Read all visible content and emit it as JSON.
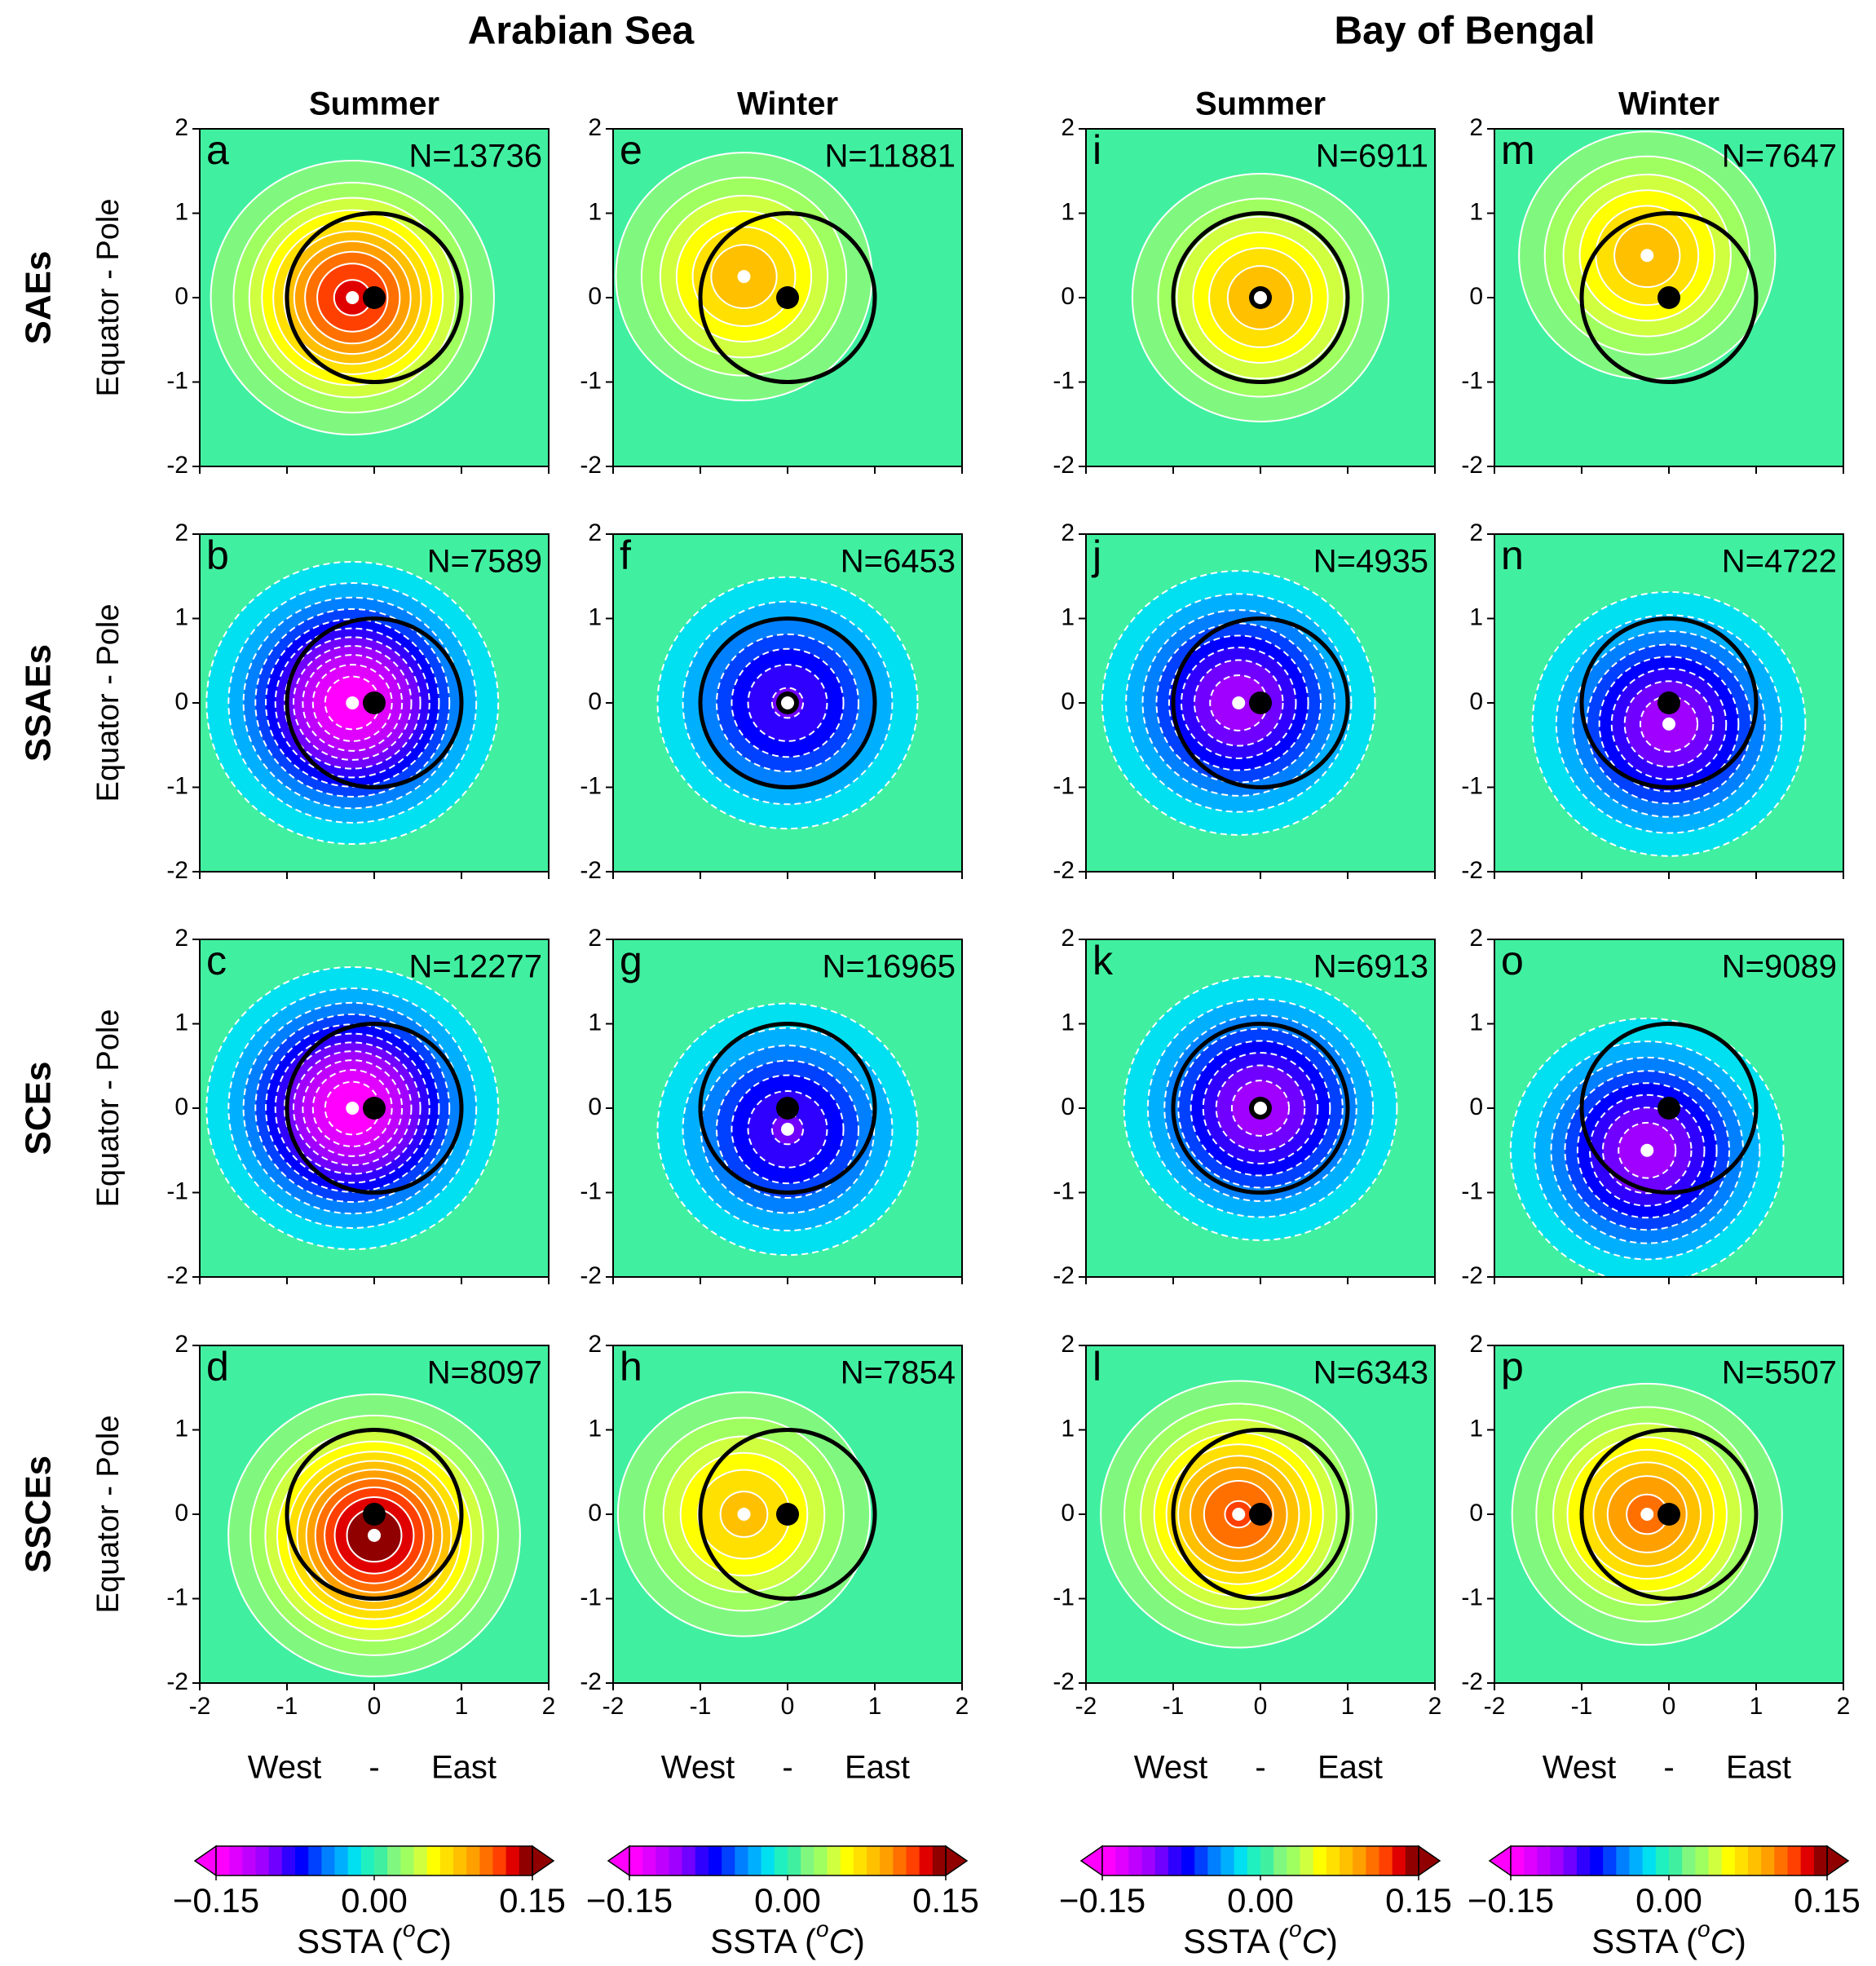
{
  "figure": {
    "regions": [
      "Arabian Sea",
      "Bay of Bengal"
    ],
    "seasons": [
      "Summer",
      "Winter",
      "Summer",
      "Winter"
    ],
    "rows": [
      "SAEs",
      "SSAEs",
      "SCEs",
      "SSCEs"
    ],
    "ylabel": "Equator - Pole",
    "xlabel_parts": [
      "West",
      "-",
      "East"
    ],
    "colorbar": {
      "lim": [
        -0.15,
        0.15
      ],
      "ticks": [
        {
          "value": -0.15,
          "label": "−0.15"
        },
        {
          "value": 0,
          "label": "0.00"
        },
        {
          "value": 0.15,
          "label": "0.15"
        }
      ],
      "label_parts": [
        "SSTA (",
        "o",
        "C",
        ")"
      ],
      "colors": [
        "#ff00ff",
        "#e000ff",
        "#c000ff",
        "#a000ff",
        "#7000ff",
        "#3000ff",
        "#0000ff",
        "#0040ff",
        "#0080ff",
        "#00b0ff",
        "#00e0f0",
        "#20f0c0",
        "#40f0a0",
        "#80f880",
        "#a0ff60",
        "#d0ff40",
        "#ffff00",
        "#ffe000",
        "#ffc000",
        "#ffa000",
        "#ff7000",
        "#ff4000",
        "#e00000",
        "#900000"
      ]
    }
  },
  "chart_data": [
    {
      "type": "contour",
      "title": "a",
      "annotation": "N=13736",
      "peak": 0.13,
      "peak_location": [
        -0.25,
        0
      ],
      "eddy_center": [
        0,
        0
      ],
      "eddy_radius": 1,
      "xlim": [
        -2,
        2
      ],
      "ylim": [
        -2,
        2
      ],
      "xticks": [
        -2,
        -1,
        0,
        1,
        2
      ],
      "yticks": [
        -2,
        -1,
        0,
        1,
        2
      ]
    },
    {
      "type": "contour",
      "title": "b",
      "annotation": "N=7589",
      "peak": -0.15,
      "peak_location": [
        -0.25,
        0
      ],
      "eddy_center": [
        0,
        0
      ],
      "eddy_radius": 1,
      "xlim": [
        -2,
        2
      ],
      "ylim": [
        -2,
        2
      ],
      "xticks": [
        -2,
        -1,
        0,
        1,
        2
      ],
      "yticks": [
        -2,
        -1,
        0,
        1,
        2
      ]
    },
    {
      "type": "contour",
      "title": "c",
      "annotation": "N=12277",
      "peak": -0.15,
      "peak_location": [
        -0.25,
        0
      ],
      "eddy_center": [
        0,
        0
      ],
      "eddy_radius": 1,
      "xlim": [
        -2,
        2
      ],
      "ylim": [
        -2,
        2
      ],
      "xticks": [
        -2,
        -1,
        0,
        1,
        2
      ],
      "yticks": [
        -2,
        -1,
        0,
        1,
        2
      ]
    },
    {
      "type": "contour",
      "title": "d",
      "annotation": "N=8097",
      "peak": 0.15,
      "peak_location": [
        0,
        -0.25
      ],
      "eddy_center": [
        0,
        0
      ],
      "eddy_radius": 1,
      "xlim": [
        -2,
        2
      ],
      "ylim": [
        -2,
        2
      ],
      "xticks": [
        -2,
        -1,
        0,
        1,
        2
      ],
      "yticks": [
        -2,
        -1,
        0,
        1,
        2
      ]
    },
    {
      "type": "contour",
      "title": "e",
      "annotation": "N=11881",
      "peak": 0.085,
      "peak_location": [
        -0.5,
        0.25
      ],
      "eddy_center": [
        0,
        0
      ],
      "eddy_radius": 1,
      "xlim": [
        -2,
        2
      ],
      "ylim": [
        -2,
        2
      ],
      "xticks": [
        -2,
        -1,
        0,
        1,
        2
      ],
      "yticks": [
        -2,
        -1,
        0,
        1,
        2
      ]
    },
    {
      "type": "contour",
      "title": "f",
      "annotation": "N=6453",
      "peak": -0.09,
      "peak_location": [
        0,
        0
      ],
      "eddy_center": [
        0,
        0
      ],
      "eddy_radius": 1,
      "xlim": [
        -2,
        2
      ],
      "ylim": [
        -2,
        2
      ],
      "xticks": [
        -2,
        -1,
        0,
        1,
        2
      ],
      "yticks": [
        -2,
        -1,
        0,
        1,
        2
      ]
    },
    {
      "type": "contour",
      "title": "g",
      "annotation": "N=16965",
      "peak": -0.09,
      "peak_location": [
        0,
        -0.25
      ],
      "eddy_center": [
        0,
        0
      ],
      "eddy_radius": 1,
      "xlim": [
        -2,
        2
      ],
      "ylim": [
        -2,
        2
      ],
      "xticks": [
        -2,
        -1,
        0,
        1,
        2
      ],
      "yticks": [
        -2,
        -1,
        0,
        1,
        2
      ]
    },
    {
      "type": "contour",
      "title": "h",
      "annotation": "N=7854",
      "peak": 0.08,
      "peak_location": [
        -0.5,
        0
      ],
      "eddy_center": [
        0,
        0
      ],
      "eddy_radius": 1,
      "xlim": [
        -2,
        2
      ],
      "ylim": [
        -2,
        2
      ],
      "xticks": [
        -2,
        -1,
        0,
        1,
        2
      ],
      "yticks": [
        -2,
        -1,
        0,
        1,
        2
      ]
    },
    {
      "type": "contour",
      "title": "i",
      "annotation": "N=6911",
      "peak": 0.085,
      "peak_location": [
        0,
        0
      ],
      "eddy_center": [
        0,
        0
      ],
      "eddy_radius": 1,
      "xlim": [
        -2,
        2
      ],
      "ylim": [
        -2,
        2
      ],
      "xticks": [
        -2,
        -1,
        0,
        1,
        2
      ],
      "yticks": [
        -2,
        -1,
        0,
        1,
        2
      ]
    },
    {
      "type": "contour",
      "title": "j",
      "annotation": "N=4935",
      "peak": -0.11,
      "peak_location": [
        -0.25,
        0
      ],
      "eddy_center": [
        0,
        0
      ],
      "eddy_radius": 1,
      "xlim": [
        -2,
        2
      ],
      "ylim": [
        -2,
        2
      ],
      "xticks": [
        -2,
        -1,
        0,
        1,
        2
      ],
      "yticks": [
        -2,
        -1,
        0,
        1,
        2
      ]
    },
    {
      "type": "contour",
      "title": "k",
      "annotation": "N=6913",
      "peak": -0.11,
      "peak_location": [
        0,
        0
      ],
      "eddy_center": [
        0,
        0
      ],
      "eddy_radius": 1,
      "xlim": [
        -2,
        2
      ],
      "ylim": [
        -2,
        2
      ],
      "xticks": [
        -2,
        -1,
        0,
        1,
        2
      ],
      "yticks": [
        -2,
        -1,
        0,
        1,
        2
      ]
    },
    {
      "type": "contour",
      "title": "l",
      "annotation": "N=6343",
      "peak": 0.115,
      "peak_location": [
        -0.25,
        0
      ],
      "eddy_center": [
        0,
        0
      ],
      "eddy_radius": 1,
      "xlim": [
        -2,
        2
      ],
      "ylim": [
        -2,
        2
      ],
      "xticks": [
        -2,
        -1,
        0,
        1,
        2
      ],
      "yticks": [
        -2,
        -1,
        0,
        1,
        2
      ]
    },
    {
      "type": "contour",
      "title": "m",
      "annotation": "N=7647",
      "peak": 0.085,
      "peak_location": [
        -0.25,
        0.5
      ],
      "eddy_center": [
        0,
        0
      ],
      "eddy_radius": 1,
      "xlim": [
        -2,
        2
      ],
      "ylim": [
        -2,
        2
      ],
      "xticks": [
        -2,
        -1,
        0,
        1,
        2
      ],
      "yticks": [
        -2,
        -1,
        0,
        1,
        2
      ]
    },
    {
      "type": "contour",
      "title": "n",
      "annotation": "N=4722",
      "peak": -0.11,
      "peak_location": [
        0,
        -0.25
      ],
      "eddy_center": [
        0,
        0
      ],
      "eddy_radius": 1,
      "xlim": [
        -2,
        2
      ],
      "ylim": [
        -2,
        2
      ],
      "xticks": [
        -2,
        -1,
        0,
        1,
        2
      ],
      "yticks": [
        -2,
        -1,
        0,
        1,
        2
      ]
    },
    {
      "type": "contour",
      "title": "o",
      "annotation": "N=9089",
      "peak": -0.11,
      "peak_location": [
        -0.25,
        -0.5
      ],
      "eddy_center": [
        0,
        0
      ],
      "eddy_radius": 1,
      "xlim": [
        -2,
        2
      ],
      "ylim": [
        -2,
        2
      ],
      "xticks": [
        -2,
        -1,
        0,
        1,
        2
      ],
      "yticks": [
        -2,
        -1,
        0,
        1,
        2
      ]
    },
    {
      "type": "contour",
      "title": "p",
      "annotation": "N=5507",
      "peak": 0.105,
      "peak_location": [
        -0.25,
        0
      ],
      "eddy_center": [
        0,
        0
      ],
      "eddy_radius": 1,
      "xlim": [
        -2,
        2
      ],
      "ylim": [
        -2,
        2
      ],
      "xticks": [
        -2,
        -1,
        0,
        1,
        2
      ],
      "yticks": [
        -2,
        -1,
        0,
        1,
        2
      ]
    }
  ]
}
